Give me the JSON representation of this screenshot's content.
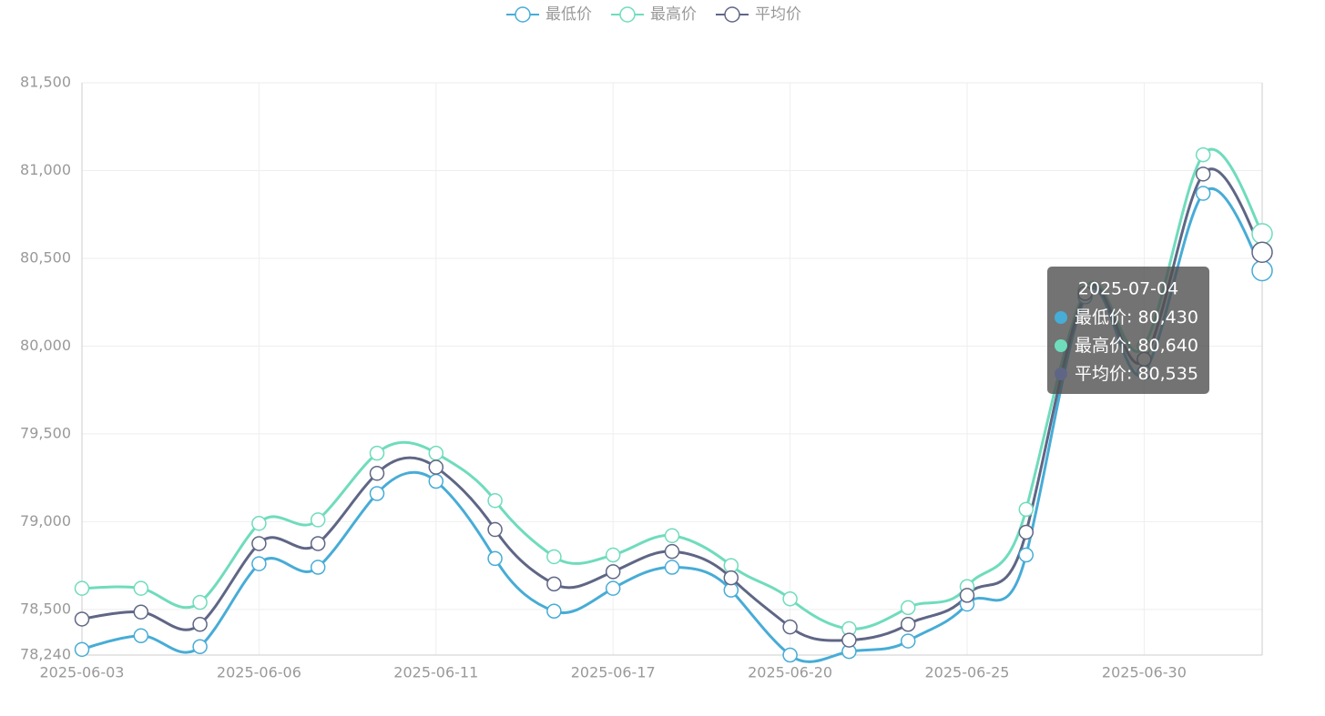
{
  "chart_data": {
    "type": "line",
    "smooth": true,
    "categories": [
      "2025-06-03",
      null,
      null,
      "2025-06-06",
      null,
      null,
      "2025-06-11",
      null,
      null,
      "2025-06-17",
      null,
      null,
      "2025-06-20",
      null,
      null,
      "2025-06-25",
      null,
      null,
      "2025-06-30",
      null,
      "2025-07-04"
    ],
    "xlabel_interval": 3,
    "series": [
      {
        "name": "最低价",
        "color": "#47acd6",
        "values": [
          78272,
          78350,
          78288,
          78760,
          78740,
          79160,
          79230,
          78790,
          78490,
          78620,
          78740,
          78610,
          78240,
          78260,
          78320,
          78530,
          78810,
          80280,
          79850,
          80870,
          80430
        ],
        "value_labels": [
          null,
          null,
          null,
          null,
          null,
          null,
          null,
          null,
          null,
          null,
          null,
          null,
          null,
          null,
          null,
          null,
          null,
          null,
          null,
          null,
          "80,430"
        ]
      },
      {
        "name": "最高价",
        "color": "#6fdcbc",
        "values": [
          78620,
          78620,
          78540,
          78990,
          79010,
          79390,
          79390,
          79120,
          78800,
          78810,
          78920,
          78750,
          78560,
          78390,
          78510,
          78630,
          79070,
          80320,
          80000,
          81090,
          80640
        ],
        "value_labels": [
          null,
          null,
          null,
          null,
          null,
          null,
          null,
          null,
          null,
          null,
          null,
          null,
          null,
          null,
          null,
          null,
          null,
          null,
          null,
          null,
          "80,640"
        ]
      },
      {
        "name": "平均价",
        "color": "#5f6685",
        "values": [
          78445,
          78485,
          78415,
          78875,
          78875,
          79275,
          79310,
          78955,
          78645,
          78715,
          78830,
          78680,
          78400,
          78325,
          78415,
          78580,
          78940,
          80300,
          79925,
          80980,
          80535
        ],
        "value_labels": [
          null,
          null,
          null,
          null,
          null,
          null,
          null,
          null,
          null,
          null,
          null,
          null,
          null,
          null,
          null,
          null,
          null,
          null,
          null,
          null,
          "80,535"
        ]
      }
    ],
    "ylim": [
      78240,
      81500
    ],
    "yticks": [
      {
        "value": 78240,
        "label": "78,240"
      },
      {
        "value": 78500,
        "label": "78,500"
      },
      {
        "value": 79000,
        "label": "79,000"
      },
      {
        "value": 79500,
        "label": "79,500"
      },
      {
        "value": 80000,
        "label": "80,000"
      },
      {
        "value": 80500,
        "label": "80,500"
      },
      {
        "value": 81000,
        "label": "81,000"
      },
      {
        "value": 81500,
        "label": "81,500"
      }
    ],
    "grid": true,
    "legend": "top",
    "tooltip_index": 20
  }
}
